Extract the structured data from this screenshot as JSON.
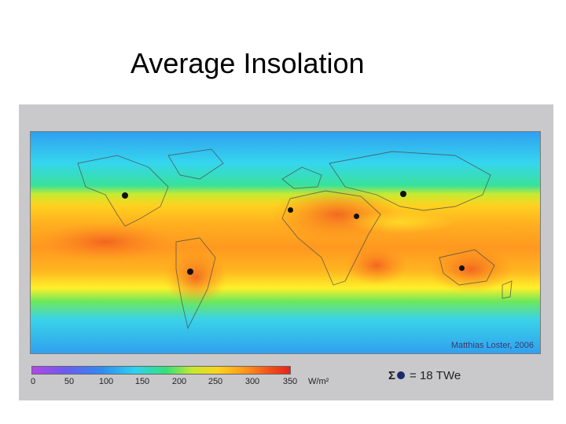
{
  "slide": {
    "title": "Average Insolation"
  },
  "map": {
    "credit": "Matthias Loster, 2006",
    "site_markers": [
      "north-america",
      "south-america",
      "north-africa",
      "east-africa",
      "central-asia",
      "australia"
    ]
  },
  "legend": {
    "ticks": [
      "0",
      "50",
      "100",
      "150",
      "200",
      "250",
      "300",
      "350"
    ],
    "units": "W/m²",
    "colors": [
      "#b347e6",
      "#6a5cf0",
      "#2f8cf0",
      "#2ed3f0",
      "#35e07a",
      "#c6e830",
      "#ffd21f",
      "#ff9a1a",
      "#f3501a",
      "#e6231a"
    ],
    "total_symbol": "Σ",
    "total_text": "= 18 TWe"
  }
}
